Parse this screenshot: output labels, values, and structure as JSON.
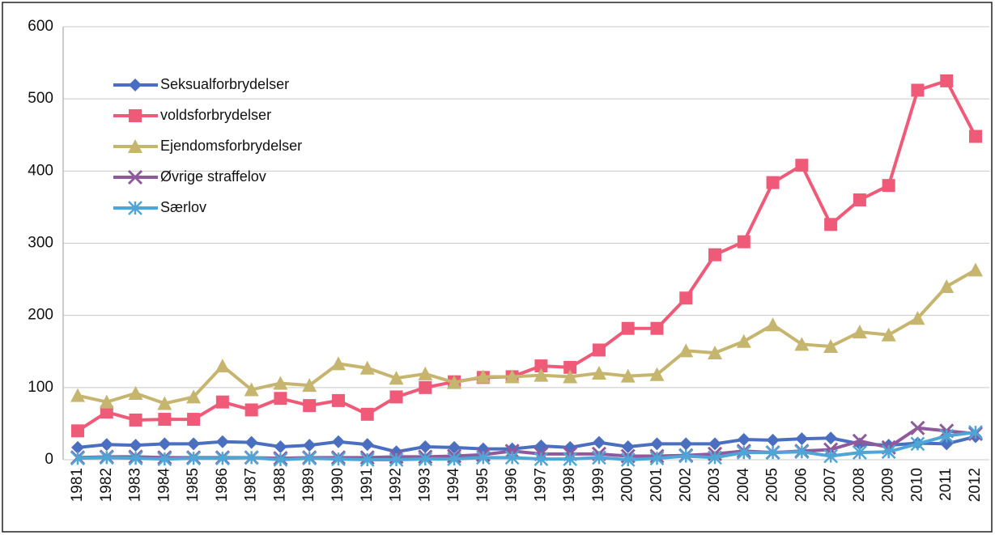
{
  "chart_data": {
    "type": "line",
    "categories": [
      "1981",
      "1982",
      "1983",
      "1984",
      "1985",
      "1986",
      "1987",
      "1988",
      "1989",
      "1990",
      "1991",
      "1992",
      "1993",
      "1994",
      "1995",
      "1996",
      "1997",
      "1998",
      "1999",
      "2000",
      "2001",
      "2002",
      "2003",
      "2004",
      "2005",
      "2006",
      "2007",
      "2008",
      "2009",
      "2010",
      "2011",
      "2012"
    ],
    "series": [
      {
        "name": "Seksualforbrydelser",
        "color": "#4a6fc0",
        "marker": "diamond",
        "values": [
          17,
          21,
          20,
          22,
          22,
          25,
          24,
          18,
          20,
          25,
          21,
          11,
          18,
          17,
          15,
          15,
          19,
          17,
          24,
          18,
          22,
          22,
          22,
          28,
          27,
          29,
          30,
          22,
          20,
          23,
          22,
          32
        ]
      },
      {
        "name": "voldsforbrydelser",
        "color": "#ef5a78",
        "marker": "square",
        "values": [
          40,
          66,
          55,
          56,
          56,
          80,
          69,
          85,
          75,
          82,
          63,
          87,
          100,
          108,
          114,
          115,
          130,
          128,
          152,
          182,
          182,
          224,
          284,
          302,
          384,
          408,
          326,
          360,
          380,
          512,
          525,
          448
        ]
      },
      {
        "name": "Ejendomsforbrydelser",
        "color": "#c6b56e",
        "marker": "triangle",
        "values": [
          89,
          80,
          92,
          78,
          87,
          130,
          97,
          106,
          103,
          133,
          127,
          113,
          119,
          107,
          115,
          115,
          117,
          115,
          120,
          116,
          118,
          151,
          148,
          164,
          187,
          160,
          157,
          177,
          173,
          196,
          240,
          263
        ]
      },
      {
        "name": "Øvrige straffelov",
        "color": "#8e5a9c",
        "marker": "x",
        "values": [
          3,
          4,
          4,
          3,
          3,
          3,
          3,
          2,
          3,
          3,
          3,
          4,
          4,
          5,
          7,
          12,
          8,
          8,
          8,
          5,
          5,
          6,
          8,
          12,
          10,
          12,
          14,
          26,
          17,
          44,
          40,
          36
        ]
      },
      {
        "name": "Særlov",
        "color": "#4fa6d6",
        "marker": "star",
        "values": [
          2,
          3,
          2,
          1,
          2,
          2,
          3,
          0,
          2,
          1,
          0,
          0,
          1,
          1,
          3,
          3,
          1,
          1,
          3,
          0,
          2,
          5,
          3,
          10,
          10,
          11,
          5,
          10,
          11,
          22,
          33,
          38
        ]
      }
    ],
    "ylim": [
      0,
      600
    ],
    "yticks": [
      0,
      100,
      200,
      300,
      400,
      500,
      600
    ],
    "grid": true
  }
}
